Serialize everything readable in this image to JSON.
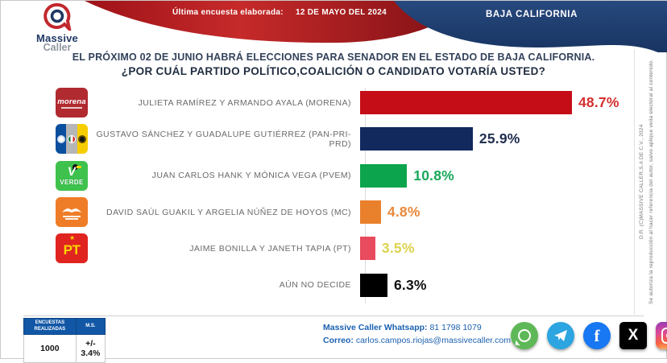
{
  "header": {
    "brand_top": "Massive",
    "brand_bottom": "Caller",
    "ribbon_label": "Última encuesta elaborada:",
    "ribbon_date": "12 DE MAYO DEL 2024",
    "region_badge": "BAJA CALIFORNIA"
  },
  "title": {
    "line1": "EL PRÓXIMO 02 DE JUNIO HABRÁ ELECCIONES PARA SENADOR EN EL ESTADO DE BAJA CALIFORNIA.",
    "line2": "¿POR CUÁL PARTIDO POLÍTICO,COALICIÓN O CANDIDATO VOTARÍA USTED?"
  },
  "chart_data": {
    "type": "bar",
    "orientation": "horizontal",
    "title": "¿POR CUÁL PARTIDO POLÍTICO, COALICIÓN O CANDIDATO VOTARÍA USTED?",
    "categories": [
      "JULIETA RAMÍREZ Y ARMANDO AYALA (MORENA)",
      "GUSTAVO SÁNCHEZ Y GUADALUPE GUTIÉRREZ (PAN-PRI-PRD)",
      "JUAN CARLOS HANK Y MÓNICA VEGA (PVEM)",
      "DAVID SAÚL GUAKIL Y ARGELIA NÚÑEZ DE HOYOS (MC)",
      "JAIME BONILLA Y JANETH TAPIA (PT)",
      "AÚN NO DECIDE"
    ],
    "values": [
      48.7,
      25.9,
      10.8,
      4.8,
      3.5,
      6.3
    ],
    "unit": "%",
    "xlim": [
      0,
      55
    ],
    "grid": false,
    "legend": false,
    "bar_colors": [
      "#c50d17",
      "#12295e",
      "#0ca44c",
      "#e9802c",
      "#e84a5e",
      "#000000"
    ],
    "value_label_colors": [
      "#d32f2f",
      "#22304f",
      "#18a85a",
      "#e9893c",
      "#ddd34f",
      "#111111"
    ]
  },
  "rows": [
    {
      "logo": "morena-logo",
      "label": "JULIETA RAMÍREZ Y ARMANDO AYALA (MORENA)",
      "value_text": "48.7%"
    },
    {
      "logo": "pan-pri-prd-logo",
      "label": "GUSTAVO SÁNCHEZ Y GUADALUPE GUTIÉRREZ (PAN-PRI-PRD)",
      "value_text": "25.9%"
    },
    {
      "logo": "pvem-verde-logo",
      "label": "JUAN CARLOS HANK Y MÓNICA VEGA (PVEM)",
      "value_text": "10.8%"
    },
    {
      "logo": "mc-logo",
      "label": "DAVID SAÚL GUAKIL Y ARGELIA NÚÑEZ DE HOYOS (MC)",
      "value_text": "4.8%"
    },
    {
      "logo": "pt-logo",
      "label": "JAIME BONILLA Y JANETH TAPIA (PT)",
      "value_text": "3.5%"
    },
    {
      "logo": null,
      "label": "AÚN NO DECIDE",
      "value_text": "6.3%"
    }
  ],
  "logo_texts": {
    "morena": "morena",
    "verde": "VERDE",
    "pt": "PT",
    "pt_star": "★",
    "verde_v": "V"
  },
  "side_note": {
    "line1": "D.R. (C)MASSIVE CALLER,S.A DE C.V., 2024",
    "line2": "Se autoriza la reproducción al hacer referencia del autor, salvo aplique veda electoral al contenido."
  },
  "footer": {
    "survey_table": {
      "col1_header": "ENCUESTAS REALIZADAS",
      "col2_header": "M.S.",
      "col1_value": "1000",
      "col2_value": "+/- 3.4%"
    },
    "contact": {
      "whatsapp_label": "Massive Caller Whatsapp:",
      "whatsapp_number": "81 1798 1079",
      "email_label": "Correo:",
      "email": "carlos.campos.riojas@massivecaller.com"
    },
    "social": [
      "whatsapp",
      "telegram",
      "facebook",
      "x-twitter",
      "instagram"
    ],
    "facebook_glyph": "f",
    "x_glyph": "X"
  },
  "colors": {
    "ribbon_red_dark": "#7d0f14",
    "ribbon_red": "#c62a2a",
    "badge_navy": "#1d3a6b",
    "footer_blue": "#1b61b1",
    "table_header_blue": "#1157a6"
  }
}
